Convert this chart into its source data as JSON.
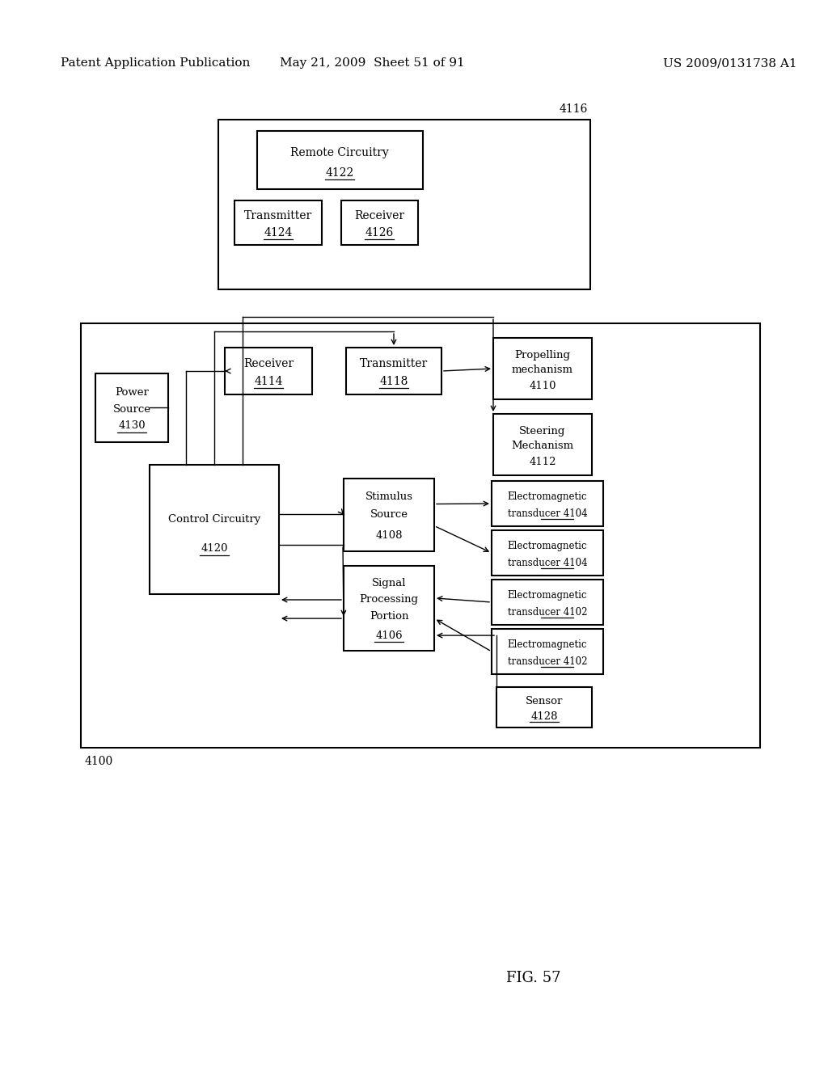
{
  "bg_color": "#ffffff",
  "header_left": "Patent Application Publication",
  "header_mid": "May 21, 2009  Sheet 51 of 91",
  "header_right": "US 2009/0131738 A1",
  "fig_label": "FIG. 57"
}
